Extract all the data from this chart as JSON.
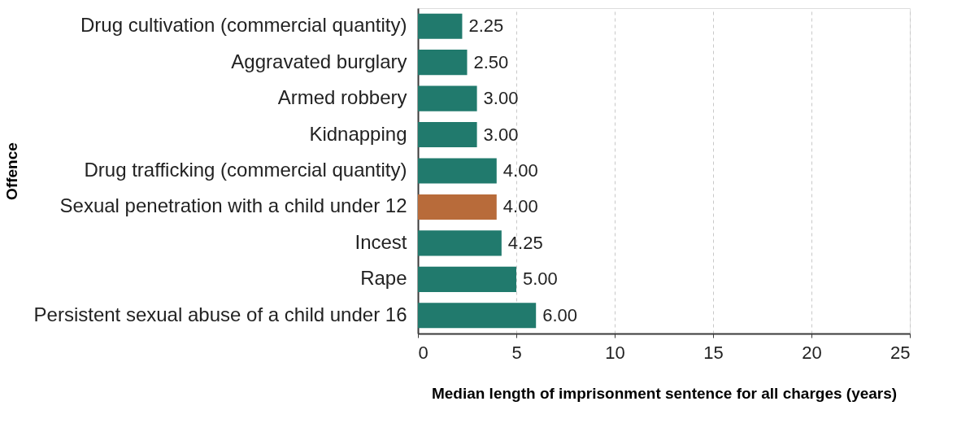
{
  "chart_data": {
    "type": "bar",
    "orientation": "horizontal",
    "xlabel": "Median length of imprisonment sentence for all charges (years)",
    "ylabel": "Offence",
    "categories": [
      "Drug cultivation (commercial quantity)",
      "Aggravated burglary",
      "Armed robbery",
      "Kidnapping",
      "Drug trafficking (commercial quantity)",
      "Sexual penetration with a child under 12",
      "Incest",
      "Rape",
      "Persistent sexual abuse of a child under 16"
    ],
    "values": [
      2.25,
      2.5,
      3,
      3,
      4,
      4,
      4.25,
      5,
      6
    ],
    "value_labels": [
      "2.25",
      "2.50",
      "3.00",
      "3.00",
      "4.00",
      "4.00",
      "4.25",
      "5.00",
      "6.00"
    ],
    "colors": [
      "#217a6d",
      "#217a6d",
      "#217a6d",
      "#217a6d",
      "#217a6d",
      "#b86b3a",
      "#217a6d",
      "#217a6d",
      "#217a6d"
    ],
    "xlim": [
      0,
      25
    ],
    "xticks": [
      0,
      5,
      10,
      15,
      20,
      25
    ],
    "grid": "x"
  }
}
